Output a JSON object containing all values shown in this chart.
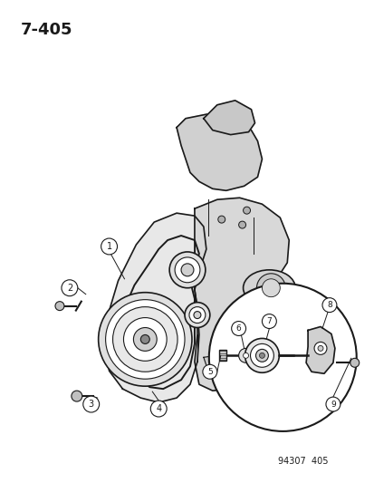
{
  "title_label": "7-405",
  "footer_label": "94307  405",
  "background_color": "#ffffff",
  "line_color": "#1a1a1a",
  "fig_width": 4.14,
  "fig_height": 5.33,
  "dpi": 100
}
